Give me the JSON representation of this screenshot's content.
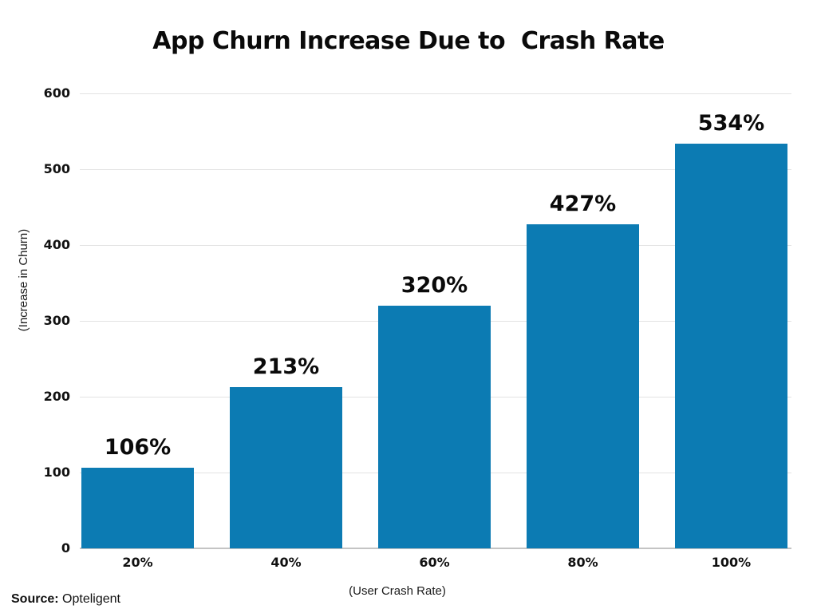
{
  "chart_data": {
    "type": "bar",
    "title": "App Churn Increase Due to  Crash Rate",
    "categories": [
      "20%",
      "40%",
      "60%",
      "80%",
      "100%"
    ],
    "values": [
      106,
      213,
      320,
      427,
      534
    ],
    "value_labels": [
      "106%",
      "213%",
      "320%",
      "427%",
      "534%"
    ],
    "xlabel": "(User Crash Rate)",
    "ylabel": "(Increase in Churn)",
    "ylim": [
      0,
      600
    ],
    "yticks": [
      0,
      100,
      200,
      300,
      400,
      500,
      600
    ],
    "grid": true,
    "legend": false,
    "bar_color": "#0c7bb3"
  },
  "source": {
    "label": "Source:",
    "value": "Opteligent"
  },
  "colors": {
    "bar": "#0c7bb3",
    "gridline": "#e3e3e3",
    "axisline": "#c4c4c4",
    "text": "#000000",
    "background": "#ffffff"
  }
}
